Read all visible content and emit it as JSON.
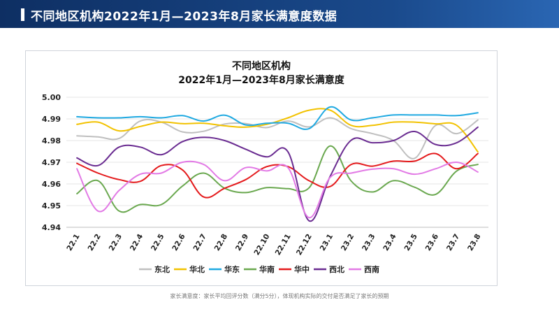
{
  "header": {
    "title": "不同地区机构2022年1月—2023年8月家长满意度数据"
  },
  "footnote": "家长满意度：家长平均回评分数（满分5分），体现机构实际的交付是否满足了家长的预期",
  "chart_data": {
    "type": "line",
    "title_line1": "不同地区机构",
    "title_line2": "2022年1月—2023年8月家长满意度",
    "xlabel": "",
    "ylabel": "",
    "ylim": [
      4.94,
      5.0
    ],
    "yticks": [
      "5.00",
      "4.99",
      "4.98",
      "4.97",
      "4.96",
      "4.95",
      "4.94"
    ],
    "categories": [
      "22.1",
      "22.2",
      "22.3",
      "22.4",
      "22.5",
      "22.6",
      "22.7",
      "22.8",
      "22.9",
      "22.10",
      "22.11",
      "22.12",
      "23.1",
      "23.2",
      "23.3",
      "23.4",
      "23.5",
      "23.6",
      "23.7",
      "23.8"
    ],
    "grid": true,
    "legend_position": "bottom",
    "series": [
      {
        "name": "东北",
        "color": "#bfbfbf",
        "values": [
          4.9822,
          4.9817,
          4.981,
          4.989,
          4.9885,
          4.984,
          4.9843,
          4.9876,
          4.9878,
          4.986,
          4.989,
          4.9863,
          4.9905,
          4.9855,
          4.9832,
          4.98,
          4.9718,
          4.987,
          4.9832,
          4.9895
        ]
      },
      {
        "name": "华北",
        "color": "#f2c200",
        "values": [
          4.9875,
          4.9885,
          4.9845,
          4.9865,
          4.9885,
          4.9878,
          4.988,
          4.9868,
          4.9862,
          4.9875,
          4.9905,
          4.994,
          4.994,
          4.987,
          4.987,
          4.9885,
          4.9885,
          4.9877,
          4.987,
          4.9748
        ]
      },
      {
        "name": "华东",
        "color": "#1fa9e1",
        "values": [
          4.991,
          4.9905,
          4.9905,
          4.991,
          4.9905,
          4.9915,
          4.989,
          4.9917,
          4.9872,
          4.988,
          4.988,
          4.9855,
          4.9955,
          4.9895,
          4.9905,
          4.9918,
          4.9918,
          4.9918,
          4.9915,
          4.9928
        ]
      },
      {
        "name": "华南",
        "color": "#6aa84f",
        "values": [
          4.9555,
          4.9615,
          4.9475,
          4.9505,
          4.9505,
          4.959,
          4.965,
          4.958,
          4.956,
          4.9583,
          4.9578,
          4.9582,
          4.9775,
          4.9613,
          4.9563,
          4.9615,
          4.9585,
          4.9552,
          4.966,
          4.969
        ]
      },
      {
        "name": "华中",
        "color": "#e41a1c",
        "values": [
          4.9695,
          4.965,
          4.962,
          4.9612,
          4.9685,
          4.9665,
          4.954,
          4.958,
          4.962,
          4.968,
          4.968,
          4.9615,
          4.9588,
          4.969,
          4.9682,
          4.9705,
          4.9705,
          4.974,
          4.967,
          4.974
        ]
      },
      {
        "name": "西北",
        "color": "#6a2c91",
        "values": [
          4.972,
          4.9685,
          4.977,
          4.977,
          4.9735,
          4.9795,
          4.9815,
          4.98,
          4.976,
          4.9725,
          4.9748,
          4.943,
          4.9635,
          4.9802,
          4.979,
          4.98,
          4.9842,
          4.9782,
          4.979,
          4.9862
        ]
      },
      {
        "name": "西南",
        "color": "#e27ae5",
        "values": [
          4.967,
          4.9475,
          4.957,
          4.9645,
          4.965,
          4.97,
          4.969,
          4.9615,
          4.9675,
          4.966,
          4.9675,
          4.9445,
          4.963,
          4.965,
          4.9668,
          4.967,
          4.9645,
          4.967,
          4.97,
          4.9655
        ]
      }
    ]
  }
}
